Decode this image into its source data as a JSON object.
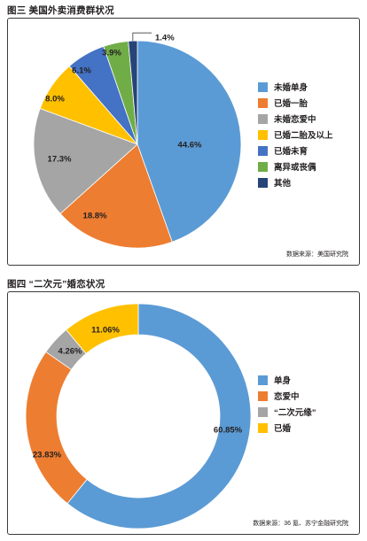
{
  "figure1": {
    "title": "图三  美国外卖消费群状况",
    "source": "数据来源：美国研究院",
    "colors": [
      "#5b9bd5",
      "#ed7d31",
      "#a5a5a5",
      "#ffc000",
      "#4472c4",
      "#70ad47",
      "#264478"
    ],
    "chart_data": {
      "type": "pie",
      "categories": [
        "未婚单身",
        "已婚一胎",
        "未婚恋爱中",
        "已婚二胎及以上",
        "已婚未育",
        "离异或丧偶",
        "其他"
      ],
      "values": [
        44.6,
        18.8,
        17.3,
        8.0,
        6.1,
        3.9,
        1.4
      ],
      "labels": [
        "44.6%",
        "18.8%",
        "17.3%",
        "8.0%",
        "6.1%",
        "3.9%",
        "1.4%"
      ],
      "legend_position": "right"
    }
  },
  "figure2": {
    "title": "图四 “二次元”婚恋状况",
    "source": "数据来源：36 氪、苏宁金融研究院",
    "colors": [
      "#5b9bd5",
      "#ed7d31",
      "#a5a5a5",
      "#ffc000"
    ],
    "chart_data": {
      "type": "pie",
      "donut": true,
      "categories": [
        "单身",
        "恋爱中",
        "“二次元缘”",
        "已婚"
      ],
      "values": [
        60.85,
        23.83,
        4.26,
        11.06
      ],
      "labels": [
        "60.85%",
        "23.83%",
        "4.26%",
        "11.06%"
      ],
      "legend_position": "right"
    }
  }
}
